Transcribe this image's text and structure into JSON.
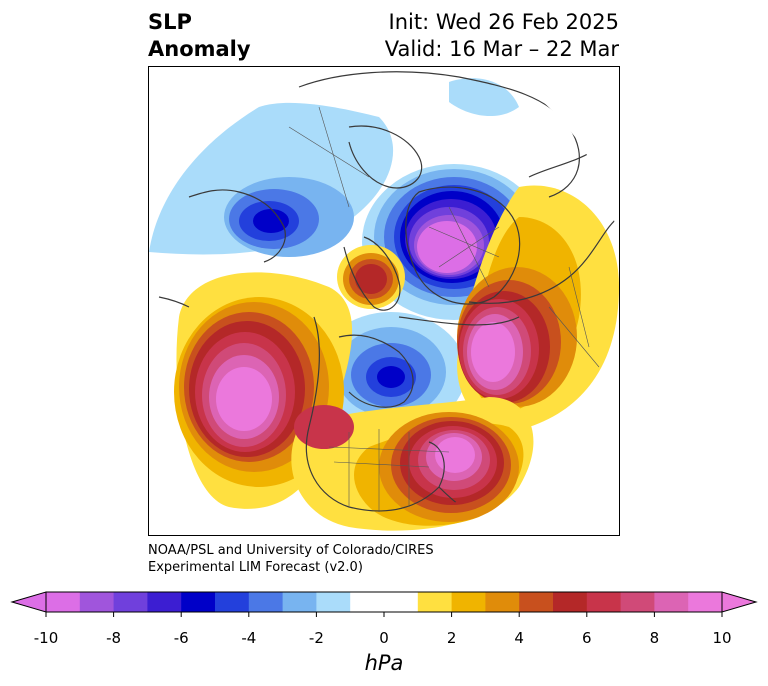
{
  "title": {
    "left_line1": "SLP",
    "left_line2": "Anomaly",
    "right_line1": "Init: Wed 26 Feb 2025",
    "right_line2": "Valid: 16 Mar – 22 Mar"
  },
  "credit": {
    "line1": "NOAA/PSL and University of Colorado/CIRES",
    "line2": "Experimental LIM Forecast (v2.0)"
  },
  "colorbar": {
    "unit": "hPa",
    "ticks": [
      "-10",
      "-8",
      "-6",
      "-4",
      "-2",
      "0",
      "2",
      "4",
      "6",
      "8",
      "10"
    ],
    "under_color": "#dc6ee6",
    "over_color": "#eb78dc",
    "colors": [
      "#dc6ee6",
      "#a055dc",
      "#7040dc",
      "#3c1ed2",
      "#0000c8",
      "#2340dc",
      "#4b78e6",
      "#78b4f0",
      "#aadcfa",
      "#ffffff",
      "#ffffff",
      "#ffe040",
      "#f0b400",
      "#e08c0a",
      "#c8501e",
      "#b42828",
      "#c8344a",
      "#d04a78",
      "#dc64b4",
      "#eb78dc"
    ]
  },
  "map": {
    "projection": "north-polar-stereographic",
    "features": [
      "coastlines",
      "country-borders",
      "state-borders"
    ],
    "anomalies": [
      {
        "region": "North Pacific",
        "sign": "positive",
        "peak_hpa": 10
      },
      {
        "region": "Eastern North America / Western Atlantic",
        "sign": "positive",
        "peak_hpa": 10
      },
      {
        "region": "Northwestern Europe",
        "sign": "positive",
        "peak_hpa": 10
      },
      {
        "region": "Greenland",
        "sign": "positive",
        "peak_hpa": 6
      },
      {
        "region": "Siberia",
        "sign": "negative",
        "peak_hpa": -10
      },
      {
        "region": "Hudson Bay",
        "sign": "negative",
        "peak_hpa": -6
      },
      {
        "region": "Western Mediterranean / North Africa",
        "sign": "negative",
        "peak_hpa": -6
      }
    ]
  }
}
